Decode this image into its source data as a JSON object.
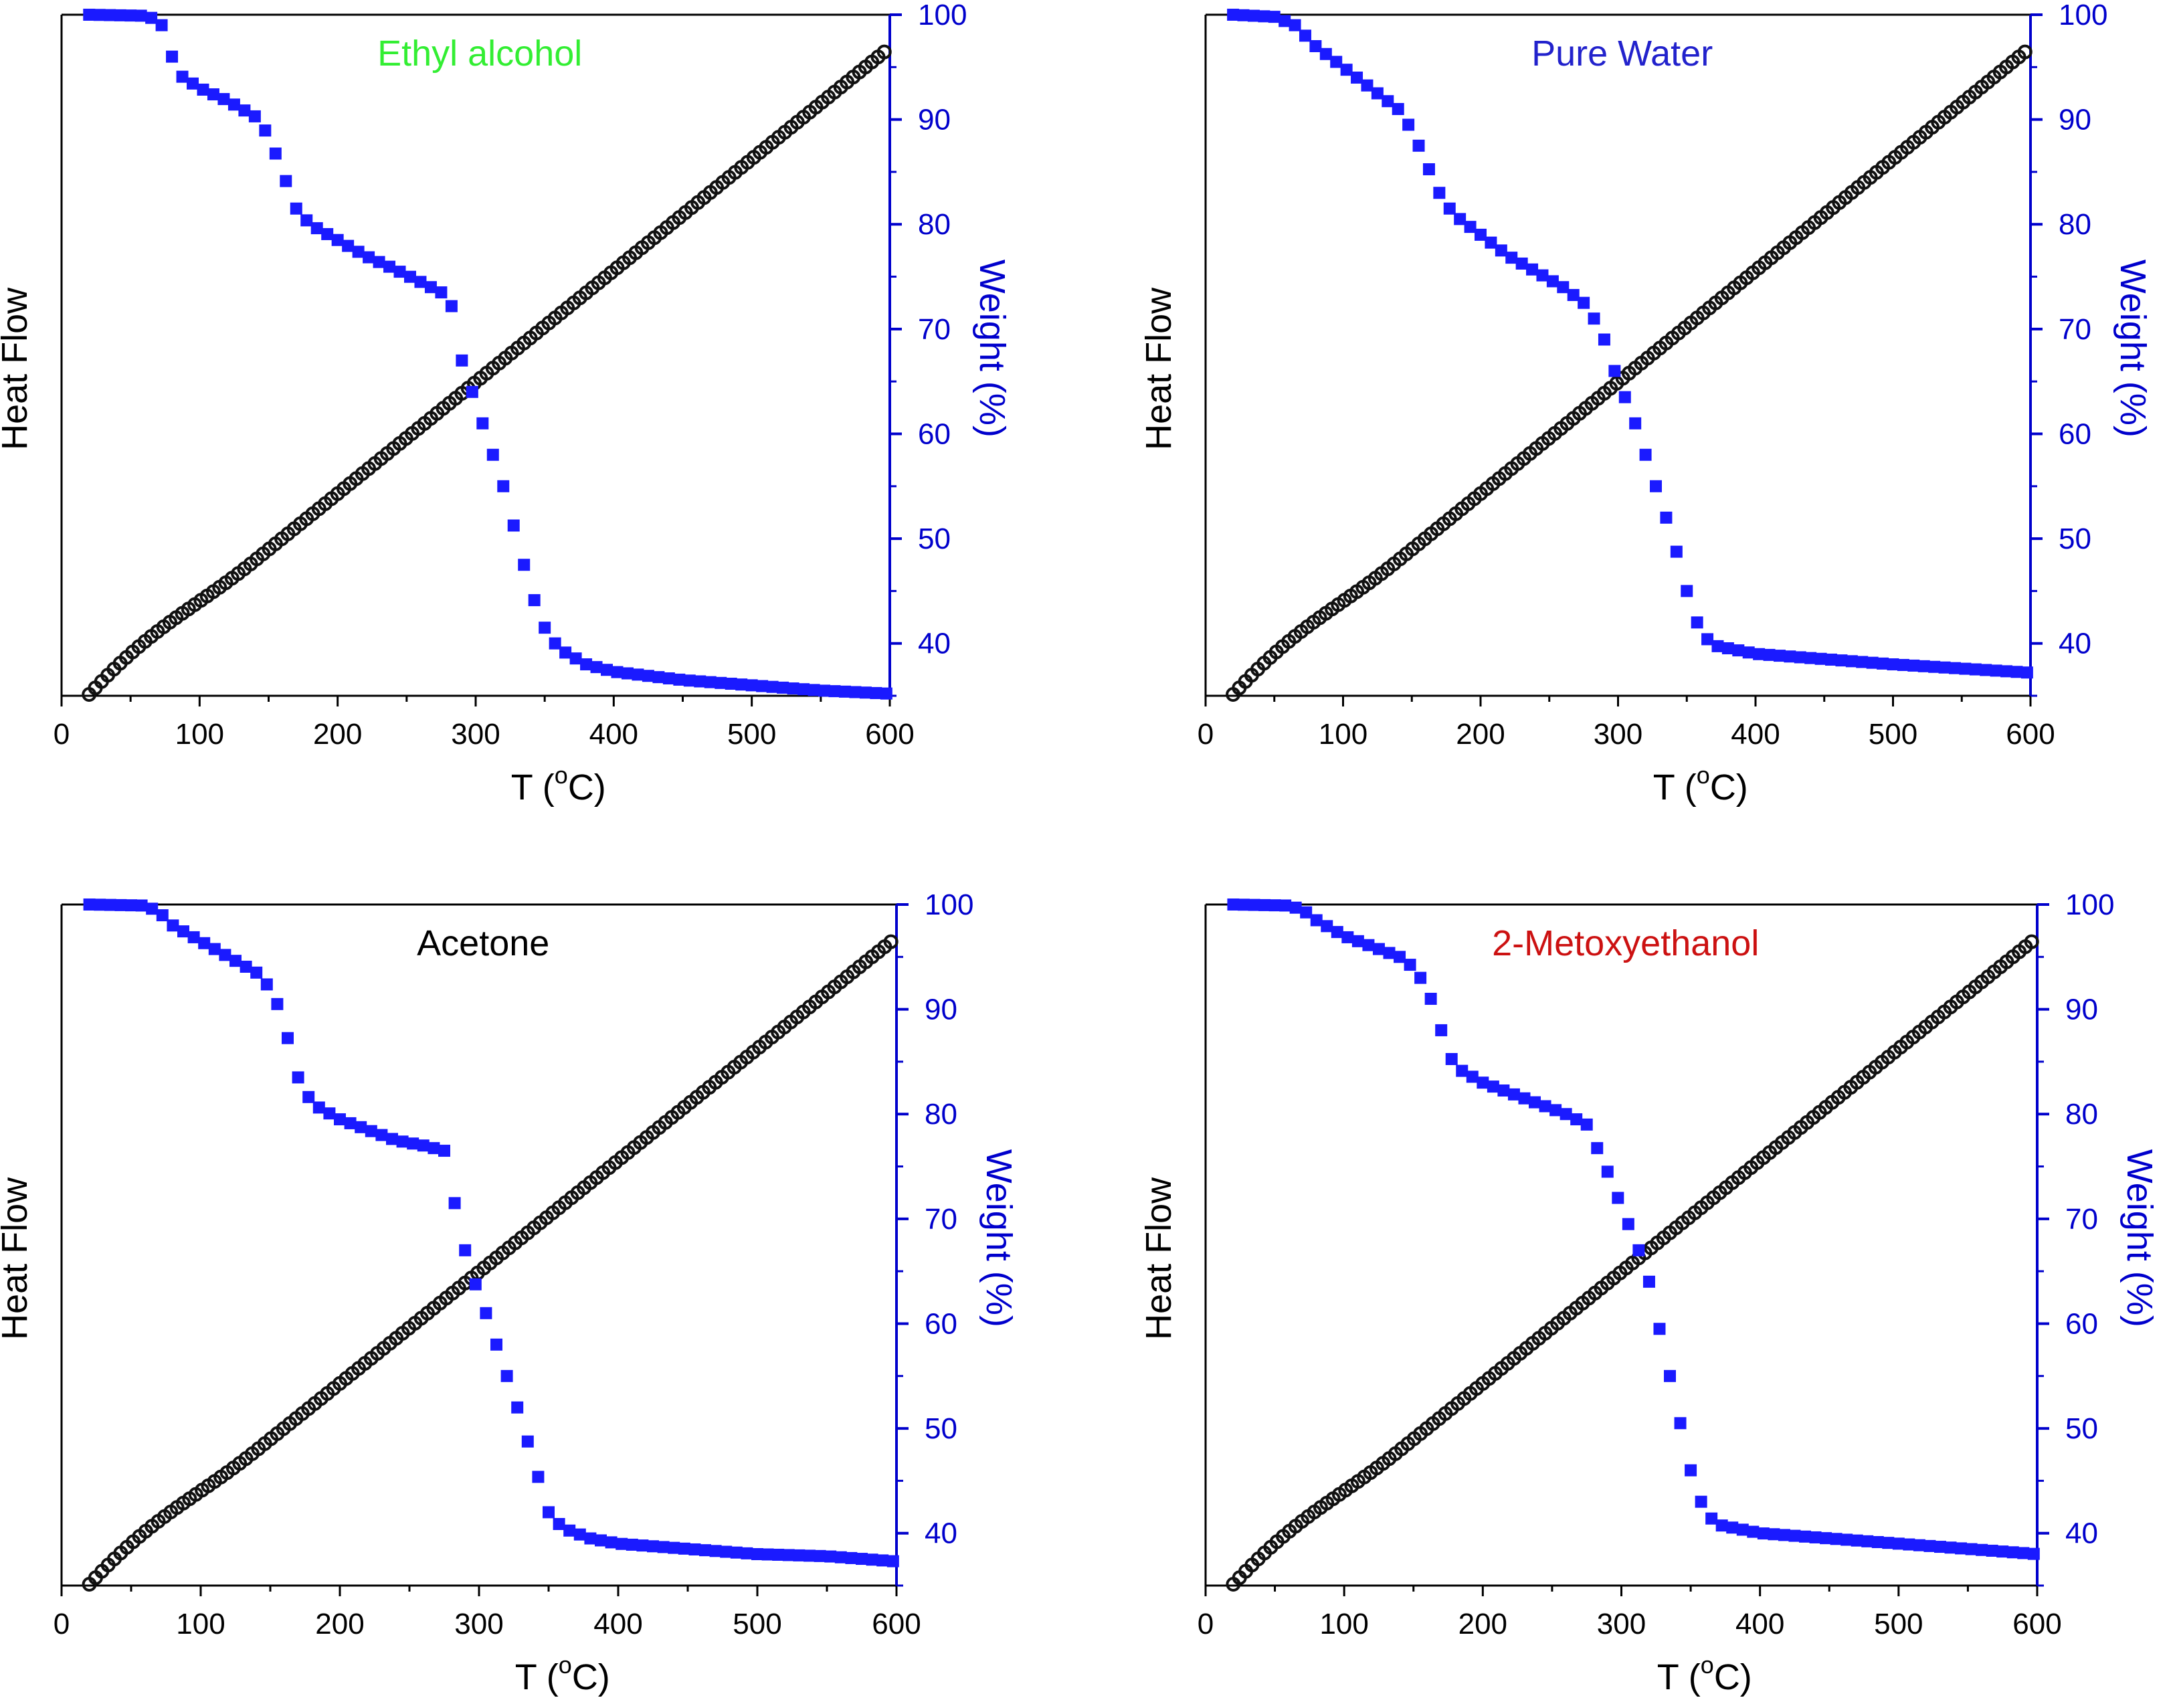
{
  "colors": {
    "axis": "#000000",
    "weight_axis": "#0000cc",
    "weight_series": "#1a1aff",
    "heat_series": "#111111"
  },
  "chart_data": [
    {
      "type": "scatter",
      "title": "Ethyl alcohol",
      "title_color": "#33ee33",
      "xlabel": "T (°C)",
      "xlabel_parts": {
        "pre": "T (",
        "sup": "o",
        "post": "C)"
      },
      "ylabel_left": "Heat Flow",
      "ylabel_right": "Weight (%)",
      "xlim": [
        0,
        600
      ],
      "ylim_right": [
        35,
        100
      ],
      "x_ticks": [
        "0",
        "100",
        "200",
        "300",
        "400",
        "500",
        "600"
      ],
      "y_right_ticks": [
        "40",
        "50",
        "60",
        "70",
        "80",
        "90",
        "100"
      ],
      "heat_flow_line": {
        "x_start": 20,
        "x_end": 600,
        "start_fraction": 0.0,
        "end_fraction": 0.95
      },
      "series": [
        {
          "name": "Weight",
          "axis": "right",
          "marker": "square",
          "points": [
            [
              20,
              100
            ],
            [
              60,
              99.9
            ],
            [
              70,
              99.5
            ],
            [
              75,
              98.5
            ],
            [
              80,
              96
            ],
            [
              85,
              94.3
            ],
            [
              100,
              93
            ],
            [
              120,
              91.8
            ],
            [
              140,
              90.3
            ],
            [
              150,
              88.5
            ],
            [
              160,
              85
            ],
            [
              170,
              81.5
            ],
            [
              180,
              80
            ],
            [
              200,
              78.5
            ],
            [
              220,
              77
            ],
            [
              240,
              75.8
            ],
            [
              260,
              74.5
            ],
            [
              275,
              73.5
            ],
            [
              282,
              72.5
            ],
            [
              286,
              70
            ],
            [
              290,
              67
            ],
            [
              295,
              65
            ],
            [
              300,
              63
            ],
            [
              310,
              59
            ],
            [
              320,
              55
            ],
            [
              330,
              50
            ],
            [
              340,
              45
            ],
            [
              350,
              41.5
            ],
            [
              360,
              39.5
            ],
            [
              380,
              38
            ],
            [
              400,
              37.3
            ],
            [
              450,
              36.5
            ],
            [
              500,
              36
            ],
            [
              550,
              35.5
            ],
            [
              600,
              35.2
            ]
          ]
        }
      ]
    },
    {
      "type": "scatter",
      "title": "Pure Water",
      "title_color": "#2222cc",
      "xlabel": "T (°C)",
      "xlabel_parts": {
        "pre": "T (",
        "sup": "o",
        "post": "C)"
      },
      "ylabel_left": "Heat Flow",
      "ylabel_right": "Weight (%)",
      "xlim": [
        0,
        600
      ],
      "ylim_right": [
        35,
        100
      ],
      "x_ticks": [
        "0",
        "100",
        "200",
        "300",
        "400",
        "500",
        "600"
      ],
      "y_right_ticks": [
        "40",
        "50",
        "60",
        "70",
        "80",
        "90",
        "100"
      ],
      "heat_flow_line": {
        "x_start": 20,
        "x_end": 600,
        "start_fraction": 0.0,
        "end_fraction": 0.95
      },
      "series": [
        {
          "name": "Weight",
          "axis": "right",
          "marker": "square",
          "points": [
            [
              20,
              100
            ],
            [
              50,
              99.8
            ],
            [
              65,
              99
            ],
            [
              80,
              97
            ],
            [
              100,
              95
            ],
            [
              120,
              93
            ],
            [
              140,
              91
            ],
            [
              150,
              89
            ],
            [
              160,
              86
            ],
            [
              170,
              83
            ],
            [
              180,
              81
            ],
            [
              200,
              79
            ],
            [
              220,
              77
            ],
            [
              240,
              75.5
            ],
            [
              260,
              74
            ],
            [
              275,
              72.5
            ],
            [
              285,
              70.5
            ],
            [
              290,
              69
            ],
            [
              295,
              67
            ],
            [
              300,
              65
            ],
            [
              310,
              62
            ],
            [
              320,
              58
            ],
            [
              330,
              54
            ],
            [
              340,
              50
            ],
            [
              350,
              45
            ],
            [
              360,
              41
            ],
            [
              370,
              39.8
            ],
            [
              400,
              39
            ],
            [
              450,
              38.5
            ],
            [
              500,
              38
            ],
            [
              550,
              37.6
            ],
            [
              600,
              37.2
            ]
          ]
        }
      ]
    },
    {
      "type": "scatter",
      "title": "Acetone",
      "title_color": "#000000",
      "xlabel": "T (°C)",
      "xlabel_parts": {
        "pre": "T (",
        "sup": "o",
        "post": "C)"
      },
      "ylabel_left": "Heat Flow",
      "ylabel_right": "Weight (%)",
      "xlim": [
        0,
        600
      ],
      "ylim_right": [
        35,
        100
      ],
      "x_ticks": [
        "0",
        "100",
        "200",
        "300",
        "400",
        "500",
        "600"
      ],
      "y_right_ticks": [
        "40",
        "50",
        "60",
        "70",
        "80",
        "90",
        "100"
      ],
      "heat_flow_line": {
        "x_start": 20,
        "x_end": 600,
        "start_fraction": 0.0,
        "end_fraction": 0.95
      },
      "series": [
        {
          "name": "Weight",
          "axis": "right",
          "marker": "square",
          "points": [
            [
              20,
              100
            ],
            [
              60,
              99.9
            ],
            [
              70,
              99.3
            ],
            [
              80,
              98
            ],
            [
              100,
              96.5
            ],
            [
              120,
              95
            ],
            [
              140,
              93.5
            ],
            [
              150,
              92
            ],
            [
              155,
              90.5
            ],
            [
              160,
              88.5
            ],
            [
              165,
              86
            ],
            [
              170,
              83.5
            ],
            [
              180,
              81
            ],
            [
              200,
              79.5
            ],
            [
              220,
              78.5
            ],
            [
              240,
              77.5
            ],
            [
              260,
              77
            ],
            [
              275,
              76.5
            ],
            [
              280,
              74
            ],
            [
              283,
              71
            ],
            [
              288,
              68
            ],
            [
              295,
              64.5
            ],
            [
              300,
              63
            ],
            [
              310,
              59
            ],
            [
              320,
              55
            ],
            [
              330,
              51
            ],
            [
              340,
              46.5
            ],
            [
              350,
              42
            ],
            [
              360,
              40.5
            ],
            [
              380,
              39.5
            ],
            [
              400,
              39
            ],
            [
              450,
              38.5
            ],
            [
              500,
              38
            ],
            [
              550,
              37.8
            ],
            [
              600,
              37.3
            ]
          ]
        }
      ]
    },
    {
      "type": "scatter",
      "title": "2-Metoxyethanol",
      "title_color": "#cc1111",
      "xlabel": "T (°C)",
      "xlabel_parts": {
        "pre": "T (",
        "sup": "o",
        "post": "C)"
      },
      "ylabel_left": "Heat Flow",
      "ylabel_right": "Weight (%)",
      "xlim": [
        0,
        600
      ],
      "ylim_right": [
        35,
        100
      ],
      "x_ticks": [
        "0",
        "100",
        "200",
        "300",
        "400",
        "500",
        "600"
      ],
      "y_right_ticks": [
        "40",
        "50",
        "60",
        "70",
        "80",
        "90",
        "100"
      ],
      "heat_flow_line": {
        "x_start": 20,
        "x_end": 600,
        "start_fraction": 0.0,
        "end_fraction": 0.95
      },
      "series": [
        {
          "name": "Weight",
          "axis": "right",
          "marker": "square",
          "points": [
            [
              20,
              100
            ],
            [
              60,
              99.9
            ],
            [
              70,
              99.5
            ],
            [
              80,
              98.5
            ],
            [
              100,
              97
            ],
            [
              120,
              96
            ],
            [
              140,
              95
            ],
            [
              150,
              94
            ],
            [
              160,
              92
            ],
            [
              165,
              90
            ],
            [
              170,
              88
            ],
            [
              175,
              86
            ],
            [
              180,
              84.5
            ],
            [
              200,
              83
            ],
            [
              220,
              82
            ],
            [
              240,
              81
            ],
            [
              260,
              80
            ],
            [
              275,
              79
            ],
            [
              285,
              76
            ],
            [
              295,
              73
            ],
            [
              300,
              71
            ],
            [
              310,
              68
            ],
            [
              320,
              64
            ],
            [
              330,
              58
            ],
            [
              340,
              52
            ],
            [
              350,
              46
            ],
            [
              360,
              42
            ],
            [
              370,
              40.8
            ],
            [
              400,
              40
            ],
            [
              450,
              39.5
            ],
            [
              500,
              39
            ],
            [
              550,
              38.5
            ],
            [
              600,
              38
            ]
          ]
        }
      ]
    }
  ]
}
